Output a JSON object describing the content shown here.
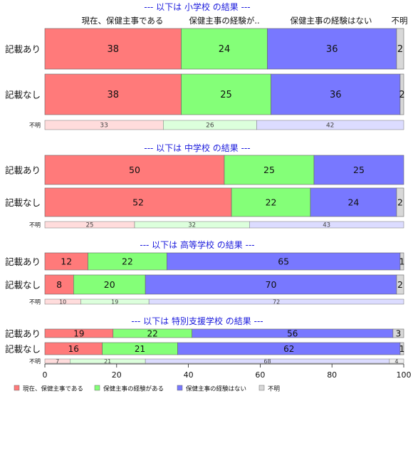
{
  "chart_data": {
    "type": "bar",
    "orientation": "horizontal-stacked-percent",
    "legend_position": "bottom",
    "column_headers": [
      "現在、保健主事である",
      "保健主事の経験が..",
      "保健主事の経験はない",
      "不明"
    ],
    "xticks": [
      "0",
      "20",
      "40",
      "60",
      "80",
      "100"
    ],
    "xlim": [
      0,
      100
    ],
    "series": [
      {
        "name": "現在、保健主事である",
        "color": "#ff7a7a",
        "light_color": "#ffdcdc"
      },
      {
        "name": "保健主事の経験がある",
        "color": "#84ff78",
        "light_color": "#dcffdc"
      },
      {
        "name": "保健主事の経験はない",
        "color": "#7878ff",
        "light_color": "#dcdcff"
      },
      {
        "name": "不明",
        "color": "#d8d8d8",
        "light_color": "#eeeeee"
      }
    ],
    "title_color": "#1a1adc",
    "panels": [
      {
        "title": "--- 以下は 小学校 の結果 ---",
        "rows": [
          {
            "label": "記載あり",
            "values": [
              38,
              24,
              36,
              2
            ],
            "labels": [
              "38",
              "24",
              "36",
              "2"
            ]
          },
          {
            "label": "記載なし",
            "values": [
              38,
              25,
              36,
              2
            ],
            "labels": [
              "38",
              "25",
              "36",
              "2"
            ]
          }
        ],
        "unknown_row": {
          "label": "不明",
          "values": [
            33,
            26,
            42
          ],
          "labels": [
            "33",
            "26",
            "42"
          ]
        }
      },
      {
        "title": "--- 以下は 中学校 の結果 ---",
        "rows": [
          {
            "label": "記載あり",
            "values": [
              50,
              25,
              25,
              0.5
            ],
            "labels": [
              "50",
              "25",
              "25",
              ""
            ]
          },
          {
            "label": "記載なし",
            "values": [
              52,
              22,
              24,
              2
            ],
            "labels": [
              "52",
              "22",
              "24",
              "2"
            ]
          }
        ],
        "unknown_row": {
          "label": "不明",
          "values": [
            25,
            32,
            43
          ],
          "labels": [
            "25",
            "32",
            "43"
          ]
        }
      },
      {
        "title": "--- 以下は 高等学校 の結果 ---",
        "rows": [
          {
            "label": "記載あり",
            "values": [
              12,
              22,
              65,
              1
            ],
            "labels": [
              "12",
              "22",
              "65",
              "1"
            ]
          },
          {
            "label": "記載なし",
            "values": [
              8,
              20,
              70,
              2
            ],
            "labels": [
              "8",
              "20",
              "70",
              "2"
            ]
          }
        ],
        "unknown_row": {
          "label": "不明",
          "values": [
            10,
            19,
            72
          ],
          "labels": [
            "10",
            "19",
            "72"
          ]
        }
      },
      {
        "title": "--- 以下は 特別支援学校 の結果 ---",
        "rows": [
          {
            "label": "記載あり",
            "values": [
              19,
              22,
              56,
              3
            ],
            "labels": [
              "19",
              "22",
              "56",
              "3"
            ]
          },
          {
            "label": "記載なし",
            "values": [
              16,
              21,
              62,
              1
            ],
            "labels": [
              "16",
              "21",
              "62",
              "1"
            ]
          }
        ],
        "unknown_row": {
          "label": "不明",
          "values": [
            7,
            21,
            68,
            4
          ],
          "labels": [
            "7",
            "21",
            "68",
            "4"
          ]
        }
      }
    ]
  }
}
